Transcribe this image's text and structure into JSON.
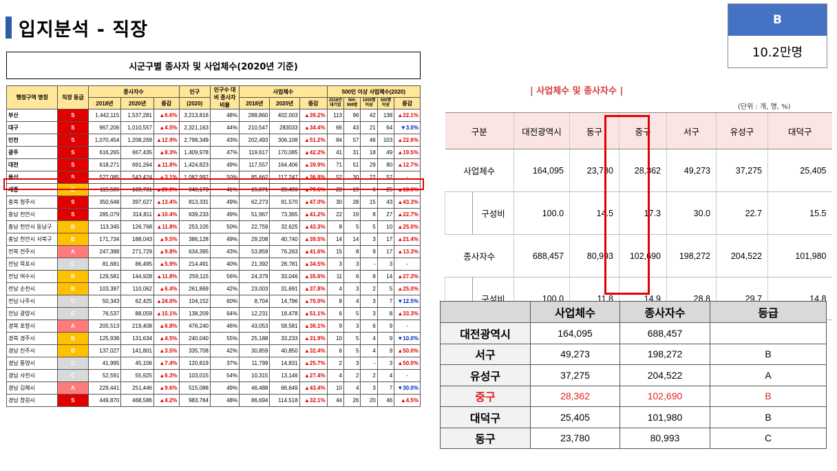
{
  "page": {
    "title": "입지분석 - 직장"
  },
  "grade_box": {
    "grade": "B",
    "value": "10.2만명"
  },
  "left_table": {
    "caption": "시군구별 종사자 및 사업체수(2020년 기준)",
    "headers": {
      "region": "행정구역 명칭",
      "grade": "직장 등급",
      "workers": "종사자수",
      "population": "인구",
      "pop_year": "(2020)",
      "ratio": "인구수 대비 종사자 비율",
      "business": "사업체수",
      "big": "500인 이상 사업체수(2020)",
      "y2018": "2018년",
      "y2020": "2020년",
      "inc": "증감",
      "big_cols": [
        "2018년 대기업",
        "500-999명",
        "1000명 이상",
        "500명 이상",
        "증감"
      ]
    },
    "rows": [
      {
        "name": "부산",
        "grade": "S",
        "gcolor": "#e00000",
        "w18": "1,442,115",
        "w20": "1,537,281",
        "winc": "▲6.6%",
        "pop": "3,213,816",
        "ratio": "48%",
        "b18": "288,860",
        "b20": "402,003",
        "binc": "▲39.2%",
        "c1": "113",
        "c2": "96",
        "c3": "42",
        "c4": "138",
        "cinc": "▲22.1%"
      },
      {
        "name": "대구",
        "grade": "S",
        "gcolor": "#e00000",
        "w18": "967,206",
        "w20": "1,010,557",
        "winc": "▲4.5%",
        "pop": "2,321,163",
        "ratio": "44%",
        "b18": "210,547",
        "b20": "283033",
        "binc": "▲34.4%",
        "c1": "66",
        "c2": "43",
        "c3": "21",
        "c4": "64",
        "cinc": "▼3.0%"
      },
      {
        "name": "인천",
        "grade": "S",
        "gcolor": "#e00000",
        "w18": "1,070,454",
        "w20": "1,208,269",
        "winc": "▲12.9%",
        "pop": "2,798,349",
        "ratio": "43%",
        "b18": "202,493",
        "b20": "306,108",
        "binc": "▲51.2%",
        "c1": "84",
        "c2": "57",
        "c3": "46",
        "c4": "103",
        "cinc": "▲22.6%"
      },
      {
        "name": "광주",
        "grade": "S",
        "gcolor": "#e00000",
        "w18": "616,265",
        "w20": "667,435",
        "winc": "▲8.3%",
        "pop": "1,409,978",
        "ratio": "47%",
        "b18": "119,617",
        "b20": "170,085",
        "binc": "▲42.2%",
        "c1": "41",
        "c2": "31",
        "c3": "18",
        "c4": "49",
        "cinc": "▲19.5%"
      },
      {
        "name": "대전",
        "grade": "S",
        "gcolor": "#e00000",
        "w18": "618,271",
        "w20": "691,264",
        "winc": "▲11.8%",
        "pop": "1,424,823",
        "ratio": "49%",
        "b18": "117,557",
        "b20": "164,406",
        "binc": "▲39.9%",
        "c1": "71",
        "c2": "51",
        "c3": "29",
        "c4": "80",
        "cinc": "▲12.7%"
      },
      {
        "name": "울산",
        "grade": "S",
        "gcolor": "#e00000",
        "w18": "527,085",
        "w20": "543,424",
        "winc": "▲3.1%",
        "pop": "1,082,992",
        "ratio": "50%",
        "b18": "85,662",
        "b20": "117,247",
        "binc": "▲36.9%",
        "c1": "52",
        "c2": "30",
        "c3": "22",
        "c4": "52",
        "cinc": "-"
      },
      {
        "name": "세종",
        "grade": "B",
        "gcolor": "#ffc000",
        "w18": "115,585",
        "w20": "139,731",
        "winc": "▲20.9%",
        "pop": "340,173",
        "ratio": "41%",
        "b18": "15,871",
        "b20": "28,490",
        "binc": "▲79.5%",
        "c1": "22",
        "c2": "19",
        "c3": "6",
        "c4": "25",
        "cinc": "▲13.6%"
      },
      {
        "name": "충북 청주시",
        "grade": "S",
        "gcolor": "#e00000",
        "w18": "350,648",
        "w20": "397,627",
        "winc": "▲13.4%",
        "pop": "813,331",
        "ratio": "49%",
        "b18": "62,273",
        "b20": "91,570",
        "binc": "▲47.0%",
        "c1": "30",
        "c2": "28",
        "c3": "15",
        "c4": "43",
        "cinc": "▲43.3%"
      },
      {
        "name": "충남 천안시",
        "grade": "S",
        "gcolor": "#e00000",
        "w18": "285,079",
        "w20": "314,811",
        "winc": "▲10.4%",
        "pop": "639,233",
        "ratio": "49%",
        "b18": "51,967",
        "b20": "73,365",
        "binc": "▲41.2%",
        "c1": "22",
        "c2": "19",
        "c3": "8",
        "c4": "27",
        "cinc": "▲22.7%"
      },
      {
        "name": "충남 천안시 동남구",
        "grade": "B",
        "gcolor": "#ffc000",
        "w18": "113,345",
        "w20": "126,768",
        "winc": "▲11.8%",
        "pop": "253,105",
        "ratio": "50%",
        "b18": "22,759",
        "b20": "32,625",
        "binc": "▲43.3%",
        "c1": "8",
        "c2": "5",
        "c3": "5",
        "c4": "10",
        "cinc": "▲25.0%"
      },
      {
        "name": "충남 천안시 서북구",
        "grade": "B",
        "gcolor": "#ffc000",
        "w18": "171,734",
        "w20": "188,043",
        "winc": "▲9.5%",
        "pop": "386,128",
        "ratio": "49%",
        "b18": "29,208",
        "b20": "40,740",
        "binc": "▲39.5%",
        "c1": "14",
        "c2": "14",
        "c3": "3",
        "c4": "17",
        "cinc": "▲21.4%"
      },
      {
        "name": "전북 전주시",
        "grade": "A",
        "gcolor": "#ff7b7b",
        "w18": "247,388",
        "w20": "271,729",
        "winc": "▲9.8%",
        "pop": "634,395",
        "ratio": "43%",
        "b18": "53,859",
        "b20": "76,263",
        "binc": "▲41.6%",
        "c1": "15",
        "c2": "8",
        "c3": "9",
        "c4": "17",
        "cinc": "▲13.3%"
      },
      {
        "name": "전남 목포시",
        "grade": "C",
        "gcolor": "#d9d9d9",
        "w18": "81,681",
        "w20": "86,495",
        "winc": "▲5.9%",
        "pop": "214,491",
        "ratio": "40%",
        "b18": "21,392",
        "b20": "28,781",
        "binc": "▲34.5%",
        "c1": "3",
        "c2": "3",
        "c3": "-",
        "c4": "3",
        "cinc": "-"
      },
      {
        "name": "전남 여수시",
        "grade": "B",
        "gcolor": "#ffc000",
        "w18": "129,581",
        "w20": "144,928",
        "winc": "▲11.8%",
        "pop": "259,115",
        "ratio": "56%",
        "b18": "24,379",
        "b20": "33,046",
        "binc": "▲35.6%",
        "c1": "11",
        "c2": "6",
        "c3": "8",
        "c4": "14",
        "cinc": "▲27.3%"
      },
      {
        "name": "전남 순천시",
        "grade": "B",
        "gcolor": "#ffc000",
        "w18": "103,397",
        "w20": "110,062",
        "winc": "▲6.4%",
        "pop": "261,869",
        "ratio": "42%",
        "b18": "23,003",
        "b20": "31,691",
        "binc": "▲37.8%",
        "c1": "4",
        "c2": "3",
        "c3": "2",
        "c4": "5",
        "cinc": "▲25.0%"
      },
      {
        "name": "전남 나주시",
        "grade": "C",
        "gcolor": "#d9d9d9",
        "w18": "50,343",
        "w20": "62,425",
        "winc": "▲24.0%",
        "pop": "104,152",
        "ratio": "60%",
        "b18": "8,704",
        "b20": "14,796",
        "binc": "▲70.0%",
        "c1": "8",
        "c2": "4",
        "c3": "3",
        "c4": "7",
        "cinc": "▼12.5%"
      },
      {
        "name": "전남 광양시",
        "grade": "C",
        "gcolor": "#d9d9d9",
        "w18": "76,537",
        "w20": "88,059",
        "winc": "▲15.1%",
        "pop": "138,209",
        "ratio": "64%",
        "b18": "12,231",
        "b20": "18,478",
        "binc": "▲51.1%",
        "c1": "6",
        "c2": "5",
        "c3": "3",
        "c4": "8",
        "cinc": "▲33.3%"
      },
      {
        "name": "경북 포항시",
        "grade": "A",
        "gcolor": "#ff7b7b",
        "w18": "205,513",
        "w20": "219,408",
        "winc": "▲6.8%",
        "pop": "476,240",
        "ratio": "46%",
        "b18": "43,053",
        "b20": "58,581",
        "binc": "▲36.1%",
        "c1": "9",
        "c2": "3",
        "c3": "6",
        "c4": "9",
        "cinc": "-"
      },
      {
        "name": "경북 경주시",
        "grade": "B",
        "gcolor": "#ffc000",
        "w18": "125,938",
        "w20": "131,634",
        "winc": "▲4.5%",
        "pop": "240,040",
        "ratio": "55%",
        "b18": "25,188",
        "b20": "33,233",
        "binc": "▲31.9%",
        "c1": "10",
        "c2": "5",
        "c3": "4",
        "c4": "9",
        "cinc": "▼10.0%"
      },
      {
        "name": "경남 진주시",
        "grade": "B",
        "gcolor": "#ffc000",
        "w18": "137,027",
        "w20": "141,801",
        "winc": "▲3.5%",
        "pop": "335,708",
        "ratio": "42%",
        "b18": "30,859",
        "b20": "40,850",
        "binc": "▲32.4%",
        "c1": "6",
        "c2": "5",
        "c3": "4",
        "c4": "9",
        "cinc": "▲50.0%"
      },
      {
        "name": "경남 통영시",
        "grade": "C",
        "gcolor": "#d9d9d9",
        "w18": "41,995",
        "w20": "45,106",
        "winc": "▲7.4%",
        "pop": "120,819",
        "ratio": "37%",
        "b18": "11,799",
        "b20": "14,831",
        "binc": "▲25.7%",
        "c1": "2",
        "c2": "3",
        "c3": "-",
        "c4": "3",
        "cinc": "▲50.0%"
      },
      {
        "name": "경남 사천시",
        "grade": "C",
        "gcolor": "#d9d9d9",
        "w18": "52,591",
        "w20": "55,925",
        "winc": "▲6.3%",
        "pop": "103,015",
        "ratio": "54%",
        "b18": "10,315",
        "b20": "13,146",
        "binc": "▲27.4%",
        "c1": "4",
        "c2": "2",
        "c3": "2",
        "c4": "4",
        "cinc": "-"
      },
      {
        "name": "경남 김해시",
        "grade": "A",
        "gcolor": "#ff7b7b",
        "w18": "229,441",
        "w20": "251,446",
        "winc": "▲9.6%",
        "pop": "515,088",
        "ratio": "49%",
        "b18": "46,488",
        "b20": "66,649",
        "binc": "▲43.4%",
        "c1": "10",
        "c2": "4",
        "c3": "3",
        "c4": "7",
        "cinc": "▼30.0%"
      },
      {
        "name": "경남 창원시",
        "grade": "S",
        "gcolor": "#e00000",
        "w18": "449,870",
        "w20": "468,586",
        "winc": "▲4.2%",
        "pop": "983,764",
        "ratio": "48%",
        "b18": "86,694",
        "b20": "114,518",
        "binc": "▲32.1%",
        "c1": "44",
        "c2": "26",
        "c3": "20",
        "c4": "46",
        "cinc": "▲4.5%"
      }
    ]
  },
  "right_top": {
    "title": "| 사업체수 및 종사자수 |",
    "unit": "(단위 : 개, 명, %)",
    "headers": [
      "구분",
      "대전광역시",
      "동구",
      "중구",
      "서구",
      "유성구",
      "대덕구"
    ],
    "rows": [
      {
        "label": "사업체수",
        "values": [
          "164,095",
          "23,780",
          "28,362",
          "49,273",
          "37,275",
          "25,405"
        ]
      },
      {
        "label": "구성비",
        "values": [
          "100.0",
          "14.5",
          "17.3",
          "30.0",
          "22.7",
          "15.5"
        ]
      },
      {
        "label": "종사자수",
        "values": [
          "688,457",
          "80,993",
          "102,690",
          "198,272",
          "204,522",
          "101,980"
        ]
      },
      {
        "label": "구성비",
        "values": [
          "100.0",
          "11.8",
          "14.9",
          "28.8",
          "29.7",
          "14.8"
        ]
      }
    ]
  },
  "right_bottom": {
    "headers": [
      "",
      "사업체수",
      "종사자수",
      "등급"
    ],
    "rows": [
      {
        "name": "대전광역시",
        "biz": "164,095",
        "workers": "688,457",
        "grade": ""
      },
      {
        "name": "서구",
        "biz": "49,273",
        "workers": "198,272",
        "grade": "B"
      },
      {
        "name": "유성구",
        "biz": "37,275",
        "workers": "204,522",
        "grade": "A"
      },
      {
        "name": "중구",
        "biz": "28,362",
        "workers": "102,690",
        "grade": "B"
      },
      {
        "name": "대덕구",
        "biz": "25,405",
        "workers": "101,980",
        "grade": "B"
      },
      {
        "name": "동구",
        "biz": "23,780",
        "workers": "80,993",
        "grade": "C"
      }
    ],
    "highlight_row": "중구"
  }
}
